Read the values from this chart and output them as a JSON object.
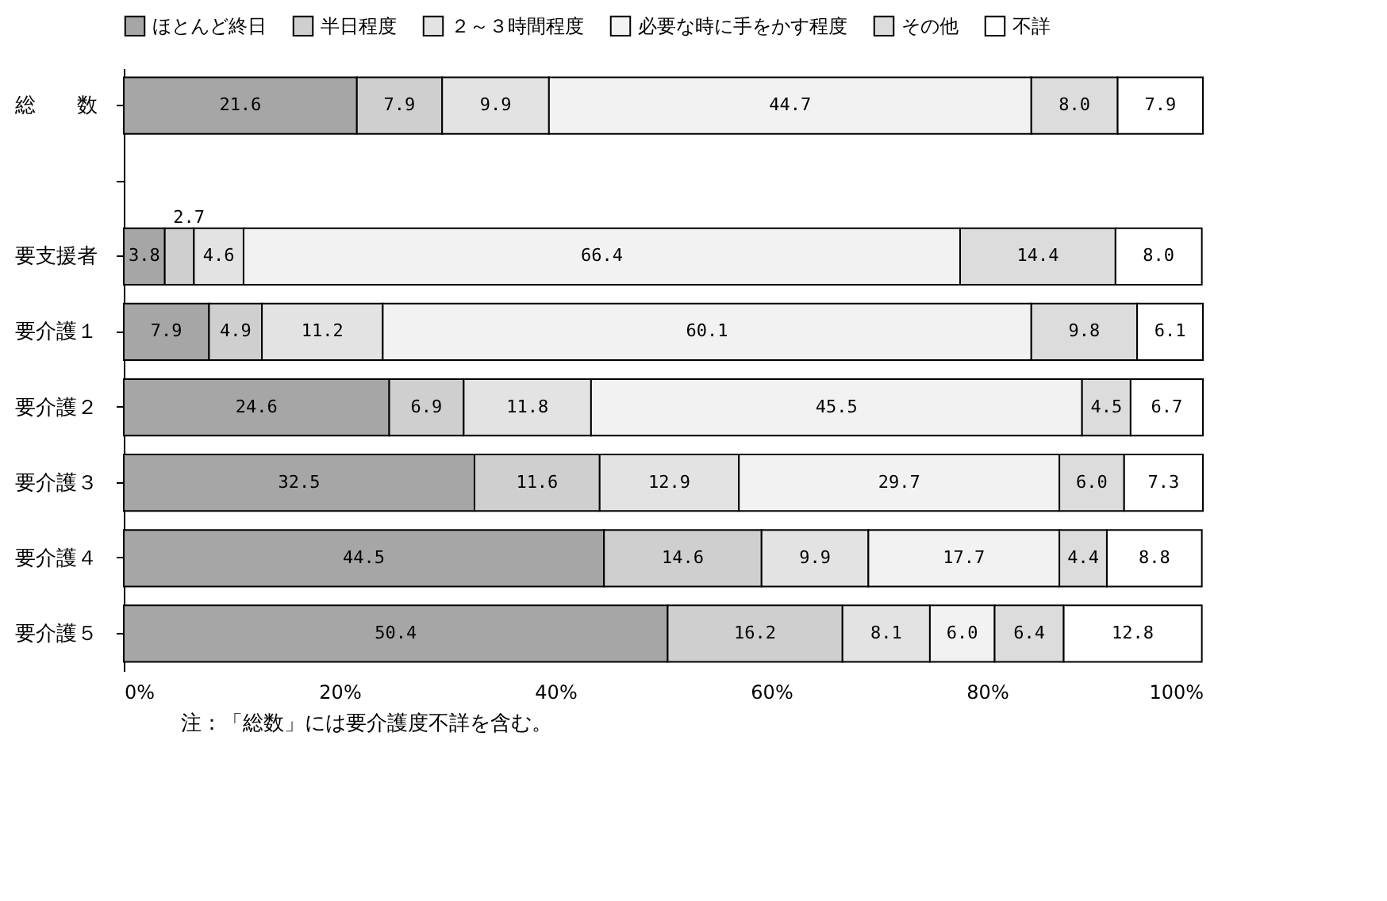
{
  "chart_data": {
    "type": "bar",
    "orientation": "horizontal",
    "stacked": true,
    "legend": "top",
    "grid": false,
    "categories": [
      "総　　数",
      null,
      "要支援者",
      "要介護１",
      "要介護２",
      "要介護３",
      "要介護４",
      "要介護５"
    ],
    "xlim": [
      0,
      100
    ],
    "xticks": [
      {
        "value": 0,
        "label": "0%"
      },
      {
        "value": 20,
        "label": "20%"
      },
      {
        "value": 40,
        "label": "40%"
      },
      {
        "value": 60,
        "label": "60%"
      },
      {
        "value": 80,
        "label": "80%"
      },
      {
        "value": 100,
        "label": "100%"
      }
    ],
    "series": [
      {
        "name": "ほとんど終日",
        "color": "#a6a6a6",
        "values": [
          21.6,
          null,
          3.8,
          7.9,
          24.6,
          32.5,
          44.5,
          50.4
        ],
        "value_labels": [
          "21.6",
          null,
          "3.8",
          "7.9",
          "24.6",
          "32.5",
          "44.5",
          "50.4"
        ]
      },
      {
        "name": "半日程度",
        "color": "#cfcfcf",
        "values": [
          7.9,
          null,
          2.7,
          4.9,
          6.9,
          11.6,
          14.6,
          16.2
        ],
        "value_labels": [
          "7.9",
          null,
          "2.7",
          "4.9",
          "6.9",
          "11.6",
          "14.6",
          "16.2"
        ]
      },
      {
        "name": "２～３時間程度",
        "color": "#e3e3e3",
        "values": [
          9.9,
          null,
          4.6,
          11.2,
          11.8,
          12.9,
          9.9,
          8.1
        ],
        "value_labels": [
          "9.9",
          null,
          "4.6",
          "11.2",
          "11.8",
          "12.9",
          "9.9",
          "8.1"
        ]
      },
      {
        "name": "必要な時に手をかす程度",
        "color": "#f2f2f2",
        "values": [
          44.7,
          null,
          66.4,
          60.1,
          45.5,
          29.7,
          17.7,
          6.0
        ],
        "value_labels": [
          "44.7",
          null,
          "66.4",
          "60.1",
          "45.5",
          "29.7",
          "17.7",
          "6.0"
        ]
      },
      {
        "name": "その他",
        "color": "#dcdcdc",
        "values": [
          8.0,
          null,
          14.4,
          9.8,
          4.5,
          6.0,
          4.4,
          6.4
        ],
        "value_labels": [
          "8.0",
          null,
          "14.4",
          "9.8",
          "4.5",
          "6.0",
          "4.4",
          "6.4"
        ]
      },
      {
        "name": "不詳",
        "color": "#ffffff",
        "values": [
          7.9,
          null,
          8.0,
          6.1,
          6.7,
          7.3,
          8.8,
          12.8
        ],
        "value_labels": [
          "7.9",
          null,
          "8.0",
          "6.1",
          "6.7",
          "7.3",
          "8.8",
          "12.8"
        ]
      }
    ],
    "annotations": [
      "注：「総数」には要介護度不詳を含む。"
    ]
  }
}
